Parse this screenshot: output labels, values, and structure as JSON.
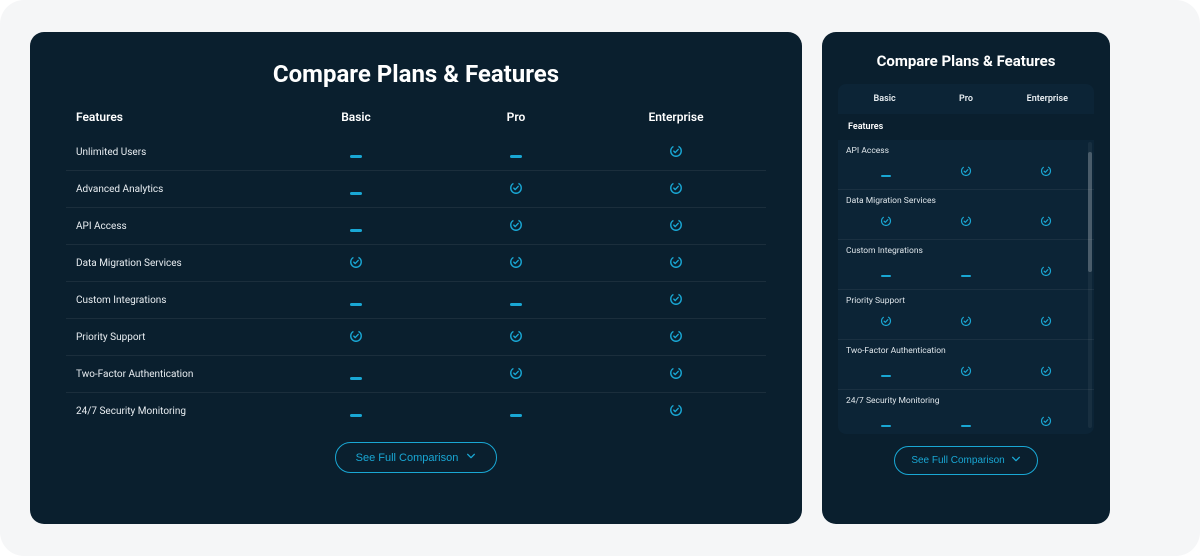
{
  "colors": {
    "page_bg": "#f5f6f7",
    "panel_bg": "#0a1f2e",
    "panel_inner_bg": "#0c2436",
    "text": "#ffffff",
    "text_muted": "#e9eef2",
    "accent": "#19a7d4",
    "divider": "rgba(255,255,255,0.07)"
  },
  "title": "Compare Plans & Features",
  "features_label": "Features",
  "plans": [
    "Basic",
    "Pro",
    "Enterprise"
  ],
  "cta_label": "See Full Comparison",
  "wide": {
    "rows": [
      {
        "label": "Unlimited Users",
        "vals": [
          "dash",
          "dash",
          "check"
        ]
      },
      {
        "label": "Advanced Analytics",
        "vals": [
          "dash",
          "check",
          "check"
        ]
      },
      {
        "label": "API Access",
        "vals": [
          "dash",
          "check",
          "check"
        ]
      },
      {
        "label": "Data Migration Services",
        "vals": [
          "check",
          "check",
          "check"
        ]
      },
      {
        "label": "Custom Integrations",
        "vals": [
          "dash",
          "dash",
          "check"
        ]
      },
      {
        "label": "Priority Support",
        "vals": [
          "check",
          "check",
          "check"
        ]
      },
      {
        "label": "Two-Factor Authentication",
        "vals": [
          "dash",
          "check",
          "check"
        ]
      },
      {
        "label": "24/7 Security Monitoring",
        "vals": [
          "dash",
          "dash",
          "check"
        ]
      }
    ]
  },
  "narrow": {
    "rows": [
      {
        "label": "API Access",
        "vals": [
          "dash",
          "check",
          "check"
        ]
      },
      {
        "label": "Data Migration Services",
        "vals": [
          "check",
          "check",
          "check"
        ]
      },
      {
        "label": "Custom Integrations",
        "vals": [
          "dash",
          "dash",
          "check"
        ]
      },
      {
        "label": "Priority Support",
        "vals": [
          "check",
          "check",
          "check"
        ]
      },
      {
        "label": "Two-Factor Authentication",
        "vals": [
          "dash",
          "check",
          "check"
        ]
      },
      {
        "label": "24/7 Security Monitoring",
        "vals": [
          "dash",
          "dash",
          "check"
        ]
      }
    ]
  }
}
